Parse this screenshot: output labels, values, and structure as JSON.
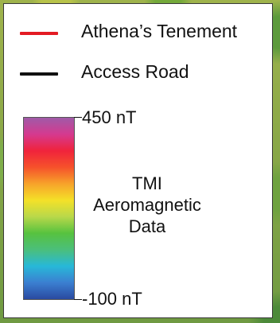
{
  "legend": {
    "items": [
      {
        "label": "Athena’s Tenement",
        "line_color": "#e31b23",
        "icon": "red-line"
      },
      {
        "label": "Access Road",
        "line_color": "#111111",
        "icon": "black-line"
      }
    ],
    "colorbar": {
      "max_label": "450 nT",
      "min_label": "-100 nT",
      "title_lines": [
        "TMI",
        "Aeromagnetic",
        "Data"
      ],
      "colors": [
        "#a05aa8",
        "#d53a8f",
        "#f0233c",
        "#f6512b",
        "#f7a22a",
        "#f4e128",
        "#b9d84a",
        "#57c23f",
        "#4bbf7b",
        "#27b8d8",
        "#3b7fd1",
        "#2a4aa0"
      ]
    }
  }
}
